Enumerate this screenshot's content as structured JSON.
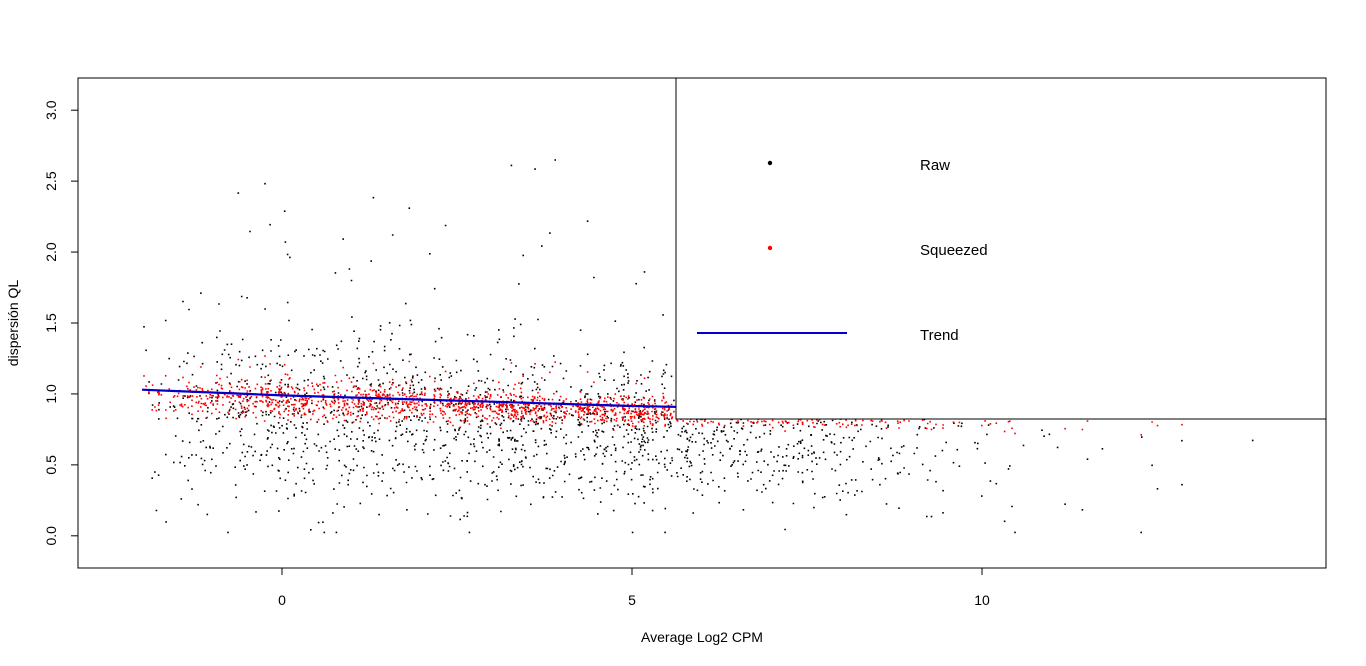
{
  "chart_data": {
    "type": "scatter",
    "xlabel": "Average Log2 CPM",
    "ylabel": "dispersión QL",
    "xlim": [
      -2.6,
      14.6
    ],
    "ylim": [
      -0.1,
      3.1
    ],
    "x_ticks": [
      0,
      5,
      10
    ],
    "y_ticks": [
      0.0,
      0.5,
      1.0,
      1.5,
      2.0,
      2.5,
      3.0
    ],
    "x_tick_labels": [
      "0",
      "5",
      "10"
    ],
    "y_tick_labels": [
      "0.0",
      "0.5",
      "1.0",
      "1.5",
      "2.0",
      "2.5",
      "3.0"
    ],
    "grid": false,
    "legend": {
      "placement": "top-right",
      "entries": [
        {
          "label": "Raw",
          "kind": "point",
          "color": "#000000"
        },
        {
          "label": "Squeezed",
          "kind": "point",
          "color": "#ff0000"
        },
        {
          "label": "Trend",
          "kind": "line",
          "color": "#0000cd"
        }
      ]
    },
    "series": [
      {
        "name": "Raw",
        "color": "#000000",
        "kind": "points"
      },
      {
        "name": "Squeezed",
        "color": "#ff0000",
        "kind": "points"
      },
      {
        "name": "Trend",
        "color": "#0000cd",
        "kind": "line",
        "x": [
          -2.0,
          -1.5,
          -1.0,
          0.0,
          1.0,
          2.0,
          3.0,
          4.0,
          5.0,
          6.0,
          7.0,
          8.0,
          9.0,
          10.0,
          11.0,
          12.0,
          13.5
        ],
        "y": [
          1.03,
          1.02,
          1.01,
          0.99,
          0.975,
          0.96,
          0.945,
          0.93,
          0.915,
          0.905,
          0.9,
          0.895,
          0.89,
          0.885,
          0.88,
          0.878,
          0.875
        ]
      }
    ],
    "density_profile": {
      "x": [
        -2.0,
        -1.5,
        -1.0,
        0,
        1,
        2,
        3,
        4,
        5,
        6,
        7,
        8,
        9,
        10,
        11,
        12,
        13,
        14
      ],
      "raw_center": [
        1.0,
        0.95,
        0.9,
        0.85,
        0.85,
        0.8,
        0.78,
        0.75,
        0.72,
        0.72,
        0.7,
        0.68,
        0.68,
        0.68,
        0.7,
        0.72,
        0.75,
        0.75
      ],
      "raw_spread": [
        0.4,
        0.4,
        0.35,
        0.32,
        0.3,
        0.28,
        0.26,
        0.25,
        0.24,
        0.24,
        0.25,
        0.25,
        0.26,
        0.28,
        0.3,
        0.3,
        0.3,
        0.3
      ],
      "relative_density": [
        0.1,
        0.3,
        0.6,
        0.8,
        0.9,
        0.95,
        1.0,
        1.0,
        1.0,
        0.9,
        0.75,
        0.5,
        0.3,
        0.15,
        0.08,
        0.05,
        0.03,
        0.02
      ],
      "squeezed_spread": [
        0.04,
        0.06,
        0.06,
        0.05,
        0.05,
        0.045,
        0.04,
        0.035,
        0.03,
        0.025,
        0.02,
        0.015,
        0.01,
        0.008,
        0.006,
        0.005,
        0.005,
        0.005
      ]
    }
  }
}
